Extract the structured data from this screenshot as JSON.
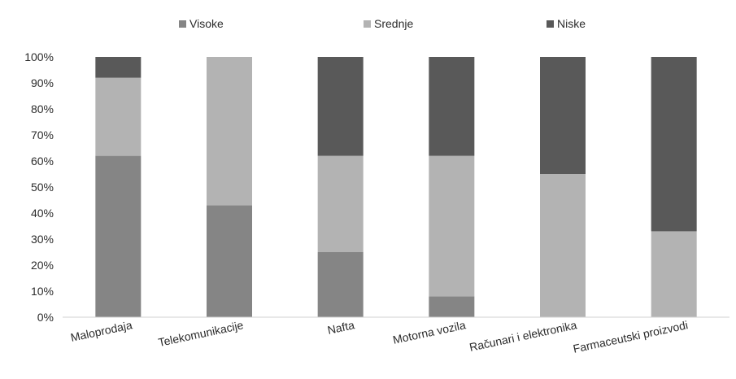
{
  "chart_data": {
    "type": "bar",
    "stacked": true,
    "percent_stacked": true,
    "categories": [
      "Maloprodaja",
      "Telekomunikacije",
      "Nafta",
      "Motorna vozila",
      "Računari i elektronika",
      "Farmaceutski proizvodi"
    ],
    "series": [
      {
        "name": "Visoke",
        "color": "#858585",
        "values": [
          62,
          43,
          25,
          8,
          0,
          0
        ]
      },
      {
        "name": "Srednje",
        "color": "#b3b3b3",
        "values": [
          30,
          57,
          37,
          54,
          55,
          33
        ]
      },
      {
        "name": "Niske",
        "color": "#595959",
        "values": [
          8,
          0,
          38,
          38,
          45,
          67
        ]
      }
    ],
    "ylim": [
      0,
      100
    ],
    "yticks": [
      "0%",
      "10%",
      "20%",
      "30%",
      "40%",
      "50%",
      "60%",
      "70%",
      "80%",
      "90%",
      "100%"
    ],
    "grid": false,
    "legend_position": "top",
    "title": "",
    "xlabel": "",
    "ylabel": ""
  }
}
